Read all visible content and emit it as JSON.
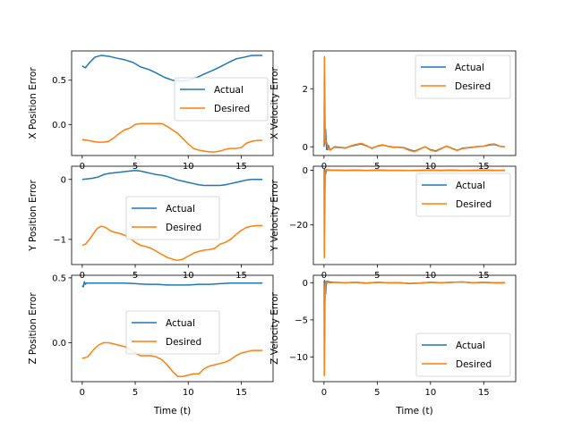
{
  "colors": {
    "actual": "#1f77b4",
    "desired": "#ff7f0e",
    "axes": "#000000",
    "background": "#ffffff"
  },
  "chart_data": [
    {
      "type": "line",
      "ylabel": "X Position Error",
      "xlabel": "",
      "xlim": [
        -1,
        18
      ],
      "ylim": [
        -0.35,
        0.83
      ],
      "xticks": [
        "0",
        "5",
        "10",
        "15"
      ],
      "yticks": [
        "0.0",
        "0.5"
      ],
      "legend": "center-right",
      "grid": false,
      "series": [
        {
          "name": "Actual",
          "x": [
            0,
            0.3,
            0.7,
            1.2,
            1.8,
            2.5,
            3.2,
            4,
            4.8,
            5.5,
            6.3,
            7,
            7.8,
            8.5,
            9.2,
            10,
            10.8,
            11.5,
            12.3,
            13,
            13.8,
            14.5,
            15.3,
            16,
            17
          ],
          "values": [
            0.66,
            0.64,
            0.7,
            0.76,
            0.78,
            0.77,
            0.75,
            0.73,
            0.7,
            0.65,
            0.62,
            0.58,
            0.53,
            0.5,
            0.49,
            0.5,
            0.53,
            0.57,
            0.61,
            0.65,
            0.7,
            0.74,
            0.76,
            0.78,
            0.78
          ]
        },
        {
          "name": "Desired",
          "x": [
            0,
            0.5,
            1,
            1.5,
            2,
            2.5,
            3,
            3.5,
            4,
            4.5,
            5,
            5.5,
            6,
            6.5,
            7,
            7.5,
            8,
            8.5,
            9,
            9.5,
            10,
            10.5,
            11,
            11.5,
            12,
            12.5,
            13,
            13.5,
            14,
            14.5,
            15,
            15.5,
            16,
            16.5,
            17
          ],
          "values": [
            -0.17,
            -0.18,
            -0.19,
            -0.2,
            -0.2,
            -0.19,
            -0.15,
            -0.1,
            -0.06,
            -0.04,
            0,
            0.01,
            0.01,
            0.01,
            0.01,
            0.01,
            -0.02,
            -0.06,
            -0.1,
            -0.16,
            -0.22,
            -0.27,
            -0.29,
            -0.3,
            -0.31,
            -0.31,
            -0.3,
            -0.28,
            -0.27,
            -0.27,
            -0.26,
            -0.21,
            -0.19,
            -0.18,
            -0.18
          ]
        }
      ]
    },
    {
      "type": "line",
      "ylabel": "X Velocity Error",
      "xlabel": "",
      "xlim": [
        -1,
        18
      ],
      "ylim": [
        -0.3,
        3.3
      ],
      "xticks": [
        "0",
        "5",
        "10",
        "15"
      ],
      "yticks": [
        "0",
        "2"
      ],
      "legend": "upper-right",
      "grid": false,
      "series": [
        {
          "name": "Actual",
          "x": [
            0,
            0.05,
            0.1,
            0.15,
            0.2,
            0.25,
            0.3,
            0.35,
            0.4,
            0.5,
            0.6,
            0.8,
            1,
            1.5,
            2,
            2.5,
            3,
            3.5,
            4,
            4.5,
            5,
            5.5,
            6,
            6.5,
            7,
            7.5,
            8,
            8.5,
            9,
            9.5,
            10,
            10.5,
            11,
            11.5,
            12,
            12.5,
            13,
            13.5,
            14,
            14.5,
            15,
            15.5,
            16,
            16.5,
            17
          ],
          "values": [
            0,
            0.1,
            0.5,
            0.6,
            0.2,
            -0.1,
            -0.05,
            -0.1,
            0.05,
            -0.05,
            -0.1,
            -0.05,
            0,
            -0.02,
            -0.04,
            0.02,
            0.06,
            0.1,
            0.03,
            -0.05,
            0.02,
            0.06,
            0.02,
            -0.01,
            -0.01,
            -0.03,
            -0.1,
            -0.15,
            -0.07,
            0,
            -0.1,
            -0.14,
            -0.06,
            0.02,
            -0.05,
            -0.12,
            -0.05,
            -0.03,
            -0.01,
            0.01,
            0.02,
            0.06,
            0.08,
            0.02,
            0
          ]
        },
        {
          "name": "Desired",
          "x": [
            0,
            0.04,
            0.08,
            0.12,
            0.16,
            0.2,
            0.3,
            0.4,
            0.5,
            0.6,
            0.8,
            1,
            1.5,
            2,
            2.5,
            3,
            3.5,
            4,
            4.5,
            5,
            5.5,
            6,
            6.5,
            7,
            7.5,
            8,
            8.5,
            9,
            9.5,
            10,
            10.5,
            11,
            11.5,
            12,
            12.5,
            13,
            13.5,
            14,
            14.5,
            15,
            15.5,
            16,
            16.5,
            17
          ],
          "values": [
            0,
            3.1,
            1.5,
            0.3,
            0.1,
            0.2,
            0.1,
            -0.1,
            -0.05,
            -0.12,
            -0.05,
            -0.02,
            -0.03,
            -0.05,
            0.03,
            0.08,
            0.12,
            0.04,
            -0.06,
            0.03,
            0.07,
            0.02,
            -0.02,
            -0.02,
            -0.04,
            -0.12,
            -0.17,
            -0.08,
            0,
            -0.12,
            -0.16,
            -0.07,
            0.03,
            -0.06,
            -0.13,
            -0.06,
            -0.04,
            -0.02,
            0.01,
            0.02,
            0.08,
            0.1,
            0.02,
            0
          ]
        }
      ]
    },
    {
      "type": "line",
      "ylabel": "Y Position Error",
      "xlabel": "",
      "xlim": [
        -1,
        18
      ],
      "ylim": [
        -1.42,
        0.22
      ],
      "xticks": [
        "0",
        "5",
        "10",
        "15"
      ],
      "yticks": [
        "0",
        "−1"
      ],
      "legend": "center",
      "grid": false,
      "series": [
        {
          "name": "Actual",
          "x": [
            0,
            0.5,
            1,
            1.5,
            2,
            2.5,
            3,
            3.5,
            4,
            4.5,
            5,
            5.5,
            6,
            6.5,
            7,
            7.5,
            8,
            8.5,
            9,
            9.5,
            10,
            10.5,
            11,
            11.5,
            12,
            12.5,
            13,
            13.5,
            14,
            14.5,
            15,
            15.5,
            16,
            16.5,
            17
          ],
          "values": [
            0,
            0.01,
            0.02,
            0.04,
            0.08,
            0.1,
            0.11,
            0.12,
            0.13,
            0.14,
            0.15,
            0.14,
            0.12,
            0.1,
            0.08,
            0.07,
            0.05,
            0.02,
            -0.01,
            -0.03,
            -0.05,
            -0.07,
            -0.09,
            -0.1,
            -0.1,
            -0.1,
            -0.1,
            -0.09,
            -0.07,
            -0.05,
            -0.03,
            -0.01,
            0,
            0,
            0
          ]
        },
        {
          "name": "Desired",
          "x": [
            0,
            0.3,
            0.6,
            1,
            1.4,
            1.8,
            2.2,
            2.6,
            3,
            3.5,
            4,
            4.5,
            5,
            5.5,
            6,
            6.5,
            7,
            7.5,
            8,
            8.5,
            9,
            9.5,
            10,
            10.5,
            11,
            11.5,
            12,
            12.5,
            13,
            13.5,
            14,
            14.5,
            15,
            15.5,
            16,
            16.5,
            17
          ],
          "values": [
            -1.1,
            -1.08,
            -1.02,
            -0.92,
            -0.82,
            -0.78,
            -0.8,
            -0.85,
            -0.88,
            -0.9,
            -0.93,
            -0.98,
            -1.05,
            -1.1,
            -1.12,
            -1.15,
            -1.2,
            -1.25,
            -1.3,
            -1.33,
            -1.35,
            -1.33,
            -1.28,
            -1.23,
            -1.2,
            -1.18,
            -1.17,
            -1.15,
            -1.08,
            -1.05,
            -1.0,
            -0.92,
            -0.85,
            -0.8,
            -0.78,
            -0.77,
            -0.77
          ]
        }
      ]
    },
    {
      "type": "line",
      "ylabel": "Y Velocity Error",
      "xlabel": "",
      "xlim": [
        -1,
        18
      ],
      "ylim": [
        -34.5,
        1.5
      ],
      "xticks": [
        "0",
        "5",
        "10",
        "15"
      ],
      "yticks": [
        "0",
        "−20"
      ],
      "legend": "center-right",
      "grid": false,
      "series": [
        {
          "name": "Actual",
          "x": [
            0,
            0.05,
            0.1,
            0.15,
            0.2,
            0.3,
            0.5,
            1,
            2,
            3,
            4,
            5,
            6,
            7,
            8,
            9,
            10,
            11,
            12,
            13,
            14,
            15,
            16,
            17
          ],
          "values": [
            0,
            0.3,
            -0.5,
            -1.5,
            -0.4,
            0.2,
            0.1,
            0.05,
            0,
            0.05,
            -0.05,
            0.05,
            0,
            0,
            -0.05,
            0,
            0.05,
            0,
            0.05,
            -0.05,
            0,
            0.05,
            0,
            0
          ]
        },
        {
          "name": "Desired",
          "x": [
            0,
            0.03,
            0.06,
            0.09,
            0.12,
            0.15,
            0.2,
            0.3,
            0.5,
            1,
            2,
            3,
            4,
            5,
            6,
            7,
            8,
            9,
            10,
            11,
            12,
            13,
            14,
            15,
            16,
            17
          ],
          "values": [
            0,
            -32,
            -20,
            -8,
            -2,
            -0.5,
            0.2,
            0.1,
            0,
            0.05,
            0,
            0.05,
            -0.05,
            0.05,
            0,
            0,
            -0.05,
            0,
            0.05,
            0,
            0.05,
            -0.05,
            0,
            0.05,
            0,
            0
          ]
        }
      ]
    },
    {
      "type": "line",
      "ylabel": "Z Position Error",
      "xlabel": "Time (t)",
      "xlim": [
        -1,
        18
      ],
      "ylim": [
        -0.3,
        0.52
      ],
      "xticks": [
        "0",
        "5",
        "10",
        "15"
      ],
      "yticks": [
        "0.0",
        "0.5"
      ],
      "legend": "center",
      "grid": false,
      "series": [
        {
          "name": "Actual",
          "x": [
            0,
            0.1,
            0.2,
            0.3,
            0.4,
            0.6,
            1,
            2,
            3,
            4,
            5,
            6,
            7,
            8,
            9,
            10,
            11,
            12,
            13,
            14,
            15,
            16,
            17
          ],
          "values": [
            0.44,
            0.43,
            0.47,
            0.45,
            0.46,
            0.46,
            0.46,
            0.46,
            0.46,
            0.46,
            0.455,
            0.45,
            0.45,
            0.445,
            0.445,
            0.445,
            0.45,
            0.45,
            0.455,
            0.46,
            0.46,
            0.46,
            0.46
          ]
        },
        {
          "name": "Desired",
          "x": [
            0,
            0.5,
            1,
            1.5,
            2,
            2.5,
            3,
            3.5,
            4,
            4.5,
            5,
            5.5,
            6,
            6.5,
            7,
            7.5,
            8,
            8.5,
            9,
            9.5,
            10,
            10.5,
            11,
            11.5,
            12,
            12.5,
            13,
            13.5,
            14,
            14.5,
            15,
            15.5,
            16,
            16.5,
            17
          ],
          "values": [
            -0.12,
            -0.11,
            -0.06,
            -0.02,
            0,
            0,
            -0.01,
            -0.02,
            -0.03,
            -0.05,
            -0.08,
            -0.1,
            -0.1,
            -0.1,
            -0.11,
            -0.13,
            -0.17,
            -0.22,
            -0.26,
            -0.26,
            -0.25,
            -0.24,
            -0.24,
            -0.2,
            -0.18,
            -0.17,
            -0.16,
            -0.15,
            -0.13,
            -0.1,
            -0.08,
            -0.07,
            -0.06,
            -0.06,
            -0.06
          ]
        }
      ]
    },
    {
      "type": "line",
      "ylabel": "Z Velocity Error",
      "xlabel": "Time (t)",
      "xlim": [
        -1,
        18
      ],
      "ylim": [
        -13.3,
        1
      ],
      "xticks": [
        "0",
        "5",
        "10",
        "15"
      ],
      "yticks": [
        "0",
        "−5",
        "−10"
      ],
      "legend": "lower-right",
      "grid": false,
      "series": [
        {
          "name": "Actual",
          "x": [
            0,
            0.05,
            0.1,
            0.15,
            0.2,
            0.3,
            0.5,
            1,
            2,
            3,
            4,
            5,
            6,
            7,
            8,
            9,
            10,
            11,
            12,
            13,
            14,
            15,
            16,
            17
          ],
          "values": [
            0,
            0.3,
            -0.5,
            -1.5,
            -0.3,
            0.2,
            0.1,
            0.05,
            0,
            0.05,
            -0.05,
            0.05,
            0,
            0,
            -0.1,
            -0.05,
            0.05,
            0,
            0.05,
            0.1,
            0,
            0.05,
            0,
            0
          ]
        },
        {
          "name": "Desired",
          "x": [
            0,
            0.03,
            0.06,
            0.09,
            0.12,
            0.15,
            0.2,
            0.3,
            0.5,
            1,
            2,
            3,
            4,
            5,
            6,
            7,
            8,
            9,
            10,
            11,
            12,
            13,
            14,
            15,
            16,
            17
          ],
          "values": [
            0,
            -12.5,
            -8,
            -3,
            -1,
            -0.3,
            0.2,
            0.1,
            0,
            0.05,
            0,
            0.05,
            -0.05,
            0.05,
            0,
            0,
            -0.1,
            -0.05,
            0.05,
            0,
            0.05,
            0.1,
            0,
            0.05,
            0,
            0
          ]
        }
      ]
    }
  ]
}
